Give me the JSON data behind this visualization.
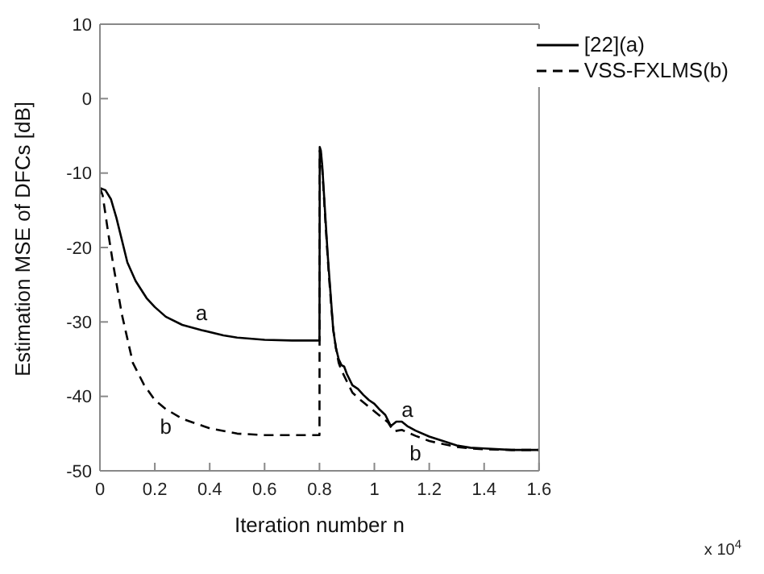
{
  "chart_data": {
    "type": "line",
    "xlabel": "Iteration number n",
    "ylabel": "Estimation MSE of DFCs [dB]",
    "xlim": [
      0,
      1.6
    ],
    "xticks": [
      0,
      0.2,
      0.4,
      0.6,
      0.8,
      1,
      1.2,
      1.4,
      1.6
    ],
    "ylim": [
      -50,
      10
    ],
    "yticks": [
      -50,
      -40,
      -30,
      -20,
      -10,
      0,
      10
    ],
    "legend": "top right",
    "marker": "none",
    "annotations": [
      {
        "text": "a",
        "x": 0.37,
        "y": -31.1
      },
      {
        "text": "b",
        "x": 0.24,
        "y": -41.7
      },
      {
        "text": "a",
        "x": 1.12,
        "y": -44
      },
      {
        "text": "b",
        "x": 1.15,
        "y": -45.3
      },
      "x 10$^{4}$"
    ],
    "series": [
      {
        "name": "[22](a)",
        "color": "#000000",
        "line_style": "solid",
        "x": [
          0,
          0.02,
          0.04,
          0.06,
          0.08,
          0.1,
          0.13,
          0.17,
          0.2,
          0.24,
          0.3,
          0.37,
          0.45,
          0.5,
          0.6,
          0.7,
          0.8,
          0.801,
          0.805,
          0.81,
          0.82,
          0.83,
          0.84,
          0.85,
          0.86,
          0.87,
          0.88,
          0.89,
          0.9,
          0.92,
          0.94,
          0.96,
          0.98,
          1,
          1.02,
          1.04,
          1.06,
          1.08,
          1.1,
          1.12,
          1.15,
          1.2,
          1.25,
          1.3,
          1.35,
          1.4,
          1.5,
          1.6
        ],
        "values": [
          -12,
          -12.3,
          -13.5,
          -16,
          -19,
          -22,
          -24.5,
          -26.8,
          -28,
          -29.3,
          -30.4,
          -31.1,
          -31.8,
          -32.1,
          -32.4,
          -32.5,
          -32.5,
          -6.5,
          -7,
          -9,
          -15,
          -21,
          -26,
          -31,
          -33.5,
          -35,
          -35.8,
          -36,
          -37,
          -38.5,
          -39,
          -39.8,
          -40.5,
          -41,
          -41.8,
          -42.5,
          -44,
          -43.4,
          -43.4,
          -44,
          -44.6,
          -45.4,
          -46,
          -46.6,
          -46.9,
          -47,
          -47.2,
          -47.2
        ]
      },
      {
        "name": "VSS-FXLMS(b)",
        "color": "#000000",
        "line_style": "dashed",
        "x": [
          0,
          0.01,
          0.02,
          0.03,
          0.048,
          0.08,
          0.12,
          0.16,
          0.2,
          0.24,
          0.3,
          0.4,
          0.5,
          0.6,
          0.7,
          0.8,
          0.801,
          0.805,
          0.81,
          0.82,
          0.83,
          0.84,
          0.85,
          0.86,
          0.87,
          0.88,
          0.9,
          0.92,
          0.95,
          1,
          1.02,
          1.05,
          1.07,
          1.1,
          1.15,
          1.2,
          1.25,
          1.3,
          1.35,
          1.4,
          1.5,
          1.6
        ],
        "values": [
          -12,
          -13,
          -15.5,
          -18,
          -22.2,
          -29,
          -35.5,
          -38.4,
          -40.5,
          -41.7,
          -43,
          -44.3,
          -45,
          -45.2,
          -45.2,
          -45.2,
          -7,
          -7.5,
          -9.5,
          -15.5,
          -21.5,
          -26.5,
          -31,
          -33.5,
          -35.5,
          -36.5,
          -38,
          -39.5,
          -40.5,
          -42,
          -42.6,
          -43.5,
          -44.7,
          -44.5,
          -45.3,
          -46,
          -46.4,
          -46.8,
          -47,
          -47.1,
          -47.2,
          -47.2
        ]
      }
    ]
  }
}
